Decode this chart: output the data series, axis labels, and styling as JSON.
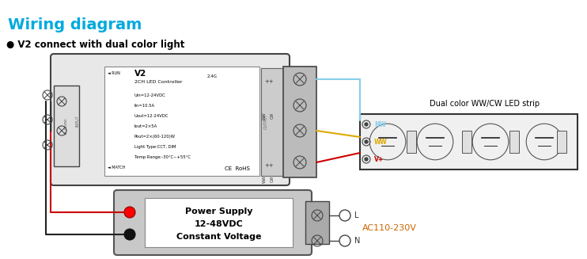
{
  "title": "Wiring diagram",
  "subtitle": "● V2 connect with dual color light",
  "title_color": "#00aadd",
  "subtitle_color": "#000000",
  "bg_color": "#ffffff",
  "wire_NW": "#87ceeb",
  "wire_WW": "#ddaa00",
  "wire_Vp": "#cc0000",
  "wire_blk": "#222222",
  "ac_label": "AC110-230V",
  "ac_color": "#cc6600",
  "L_label": "L",
  "N_label": "N",
  "ctrl_specs": [
    "Uin=12-24VDC",
    "Iin=10.5A",
    "Uout=12-24VDC",
    "Iout=2×5A",
    "Pout=2×(60-120)W",
    "Light Type:CCT, DIM",
    "Temp Range:-30°C~+55°C"
  ]
}
